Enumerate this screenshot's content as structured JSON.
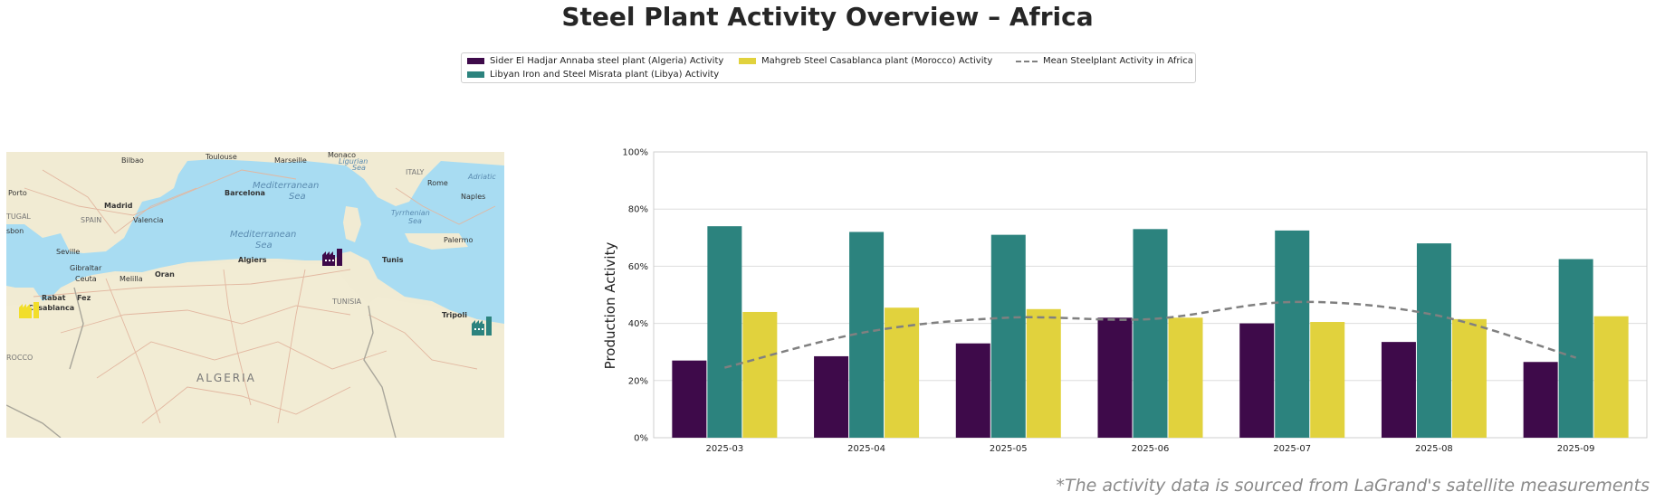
{
  "title": "Steel Plant Activity Overview – Africa",
  "footnote": "*The activity data is sourced from LaGrand's satellite measurements",
  "legend": {
    "series1": "Sider El Hadjar Annaba steel plant (Algeria) Activity",
    "series2": "Libyan Iron and Steel Misrata plant (Libya) Activity",
    "series3": "Mahgreb Steel Casablanca plant (Morocco) Activity",
    "mean": "Mean Steelplant Activity in Africa"
  },
  "map": {
    "labels": {
      "toulouse": "Toulouse",
      "marseille": "Marseille",
      "monaco": "Monaco",
      "bilbao": "Bilbao",
      "ligurian": "Ligurian",
      "sea1": "Sea",
      "italy": "ITALY",
      "rome": "Rome",
      "adriatic": "Adriatic",
      "porto": "Porto",
      "madrid": "Madrid",
      "barcelona": "Barcelona",
      "mediterranean1": "Mediterranean",
      "sea2": "Sea",
      "naples": "Naples",
      "tugal": "TUGAL",
      "spain": "SPAIN",
      "valencia": "Valencia",
      "tyrrhenian": "Tyrrhenian",
      "sea3": "Sea",
      "sbon": "sbon",
      "mediterranean2": "Mediterranean",
      "sea4": "Sea",
      "palermo": "Palermo",
      "seville": "Seville",
      "algiers": "Algiers",
      "tunis": "Tunis",
      "gibraltar": "Gibraltar",
      "ceuta": "Ceuta",
      "melilla": "Melilla",
      "oran": "Oran",
      "rabat": "Rabat",
      "fez": "Fez",
      "casablanca": "Casablanca",
      "tunisia": "TUNISIA",
      "tripoli": "Tripoli",
      "rocco": "ROCCO",
      "algeria": "ALGERIA"
    }
  },
  "chart_data": {
    "type": "bar",
    "categories": [
      "2025-03",
      "2025-04",
      "2025-05",
      "2025-06",
      "2025-07",
      "2025-08",
      "2025-09"
    ],
    "series": [
      {
        "name": "Sider El Hadjar Annaba steel plant (Algeria) Activity",
        "color": "#3e0a4a",
        "values": [
          27,
          28.5,
          33,
          42,
          40,
          33.5,
          26.5
        ]
      },
      {
        "name": "Libyan Iron and Steel Misrata plant (Libya) Activity",
        "color": "#2c837e",
        "values": [
          74,
          72,
          71,
          73,
          72.5,
          68,
          62.5
        ]
      },
      {
        "name": "Mahgreb Steel Casablanca plant (Morocco) Activity",
        "color": "#e1d23d",
        "values": [
          44,
          45.5,
          45,
          42,
          40.5,
          41.5,
          42.5
        ]
      }
    ],
    "mean_line": {
      "name": "Mean Steelplant Activity in Africa",
      "color": "#808080",
      "values": [
        24.5,
        37,
        42,
        41.5,
        47.5,
        43,
        28
      ]
    },
    "ylabel": "Production Activity",
    "ylim": [
      0,
      100
    ],
    "yticks": [
      "0%",
      "20%",
      "40%",
      "60%",
      "80%",
      "100%"
    ],
    "grid": true,
    "legend_position": "top-center"
  }
}
